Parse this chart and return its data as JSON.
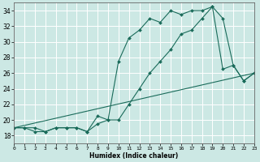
{
  "title": "",
  "xlabel": "Humidex (Indice chaleur)",
  "ylabel": "",
  "background_color": "#cce8e4",
  "grid_color": "#ffffff",
  "line_color": "#1a6b5a",
  "x_min": 0,
  "x_max": 23,
  "y_min": 17,
  "y_max": 35,
  "series1": {
    "x": [
      0,
      1,
      2,
      3,
      4,
      5,
      6,
      7,
      8,
      9,
      10,
      11,
      12,
      13,
      14,
      15,
      16,
      17,
      18,
      19,
      20,
      21,
      22,
      23
    ],
    "y": [
      19,
      19,
      19,
      18.5,
      19,
      19,
      19,
      18.5,
      20.5,
      20,
      20,
      22,
      24,
      26,
      27.5,
      29,
      31,
      31.5,
      33,
      34.5,
      26.5,
      27,
      25,
      26
    ]
  },
  "series2": {
    "x": [
      0,
      1,
      2,
      3,
      4,
      5,
      6,
      7,
      8,
      9,
      10,
      11,
      12,
      13,
      14,
      15,
      16,
      17,
      18,
      19,
      20,
      21,
      22,
      23
    ],
    "y": [
      19,
      19,
      18.5,
      18.5,
      19,
      19,
      19,
      18.5,
      19.5,
      20,
      27.5,
      30.5,
      31.5,
      33,
      32.5,
      34,
      33.5,
      34,
      34,
      34.5,
      33,
      27,
      25,
      26
    ]
  },
  "series3": {
    "x": [
      0,
      23
    ],
    "y": [
      19,
      26
    ]
  },
  "yticks": [
    18,
    20,
    22,
    24,
    26,
    28,
    30,
    32,
    34
  ],
  "xticks": [
    0,
    1,
    2,
    3,
    4,
    5,
    6,
    7,
    8,
    9,
    10,
    11,
    12,
    13,
    14,
    15,
    16,
    17,
    18,
    19,
    20,
    21,
    22,
    23
  ]
}
